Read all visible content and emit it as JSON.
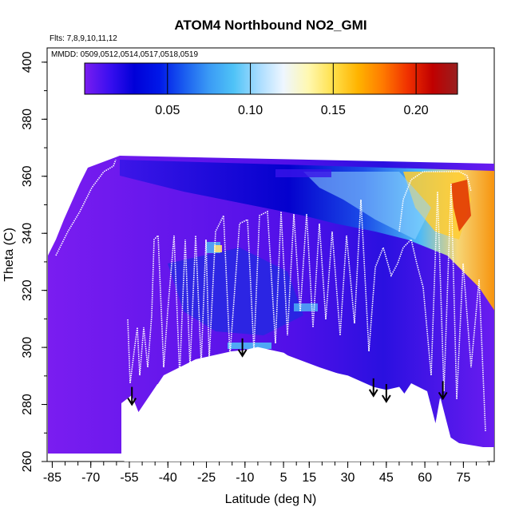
{
  "chart_data": {
    "type": "heatmap",
    "title": "ATOM4 Northbound NO2_GMI",
    "annotations": {
      "flights": "Flts: 7,8,9,10,11,12",
      "dates": "MMDD: 0509,0512,0514,0517,0518,0519"
    },
    "xlabel": "Latitude (deg N)",
    "ylabel": "Theta (C)",
    "xlim": [
      -87,
      87
    ],
    "ylim": [
      260,
      405
    ],
    "x_ticks": [
      -85,
      -70,
      -55,
      -40,
      -25,
      -10,
      5,
      15,
      30,
      45,
      60,
      75
    ],
    "x_tick_labels": [
      "-85",
      "-70",
      "-55",
      "-40",
      "-25",
      "-10",
      "5",
      "15",
      "30",
      "45",
      "60",
      "75"
    ],
    "y_ticks": [
      260,
      280,
      300,
      320,
      340,
      360,
      380,
      400
    ],
    "y_tick_labels": [
      "260",
      "280",
      "300",
      "320",
      "340",
      "360",
      "380",
      "400"
    ],
    "colorbar": {
      "min": 0.0,
      "max": 0.225,
      "ticks": [
        0.05,
        0.1,
        0.15,
        0.2
      ],
      "tick_labels": [
        "0.05",
        "0.10",
        "0.15",
        "0.20"
      ],
      "colors": [
        "#7a1df0",
        "#3a0ff0",
        "#0000d8",
        "#0018e8",
        "#1a5cf0",
        "#3a9af5",
        "#4fc3f7",
        "#a8dcff",
        "#eef6ff",
        "#fff8b0",
        "#ffe04a",
        "#ffb300",
        "#ff7a00",
        "#f03000",
        "#c00000",
        "#982020"
      ]
    },
    "surface_outline": [
      [
        -57,
        278
      ],
      [
        -55,
        282
      ],
      [
        -53,
        275
      ],
      [
        -44,
        287
      ],
      [
        -40,
        287
      ],
      [
        -30,
        295
      ],
      [
        -25,
        295
      ],
      [
        -15,
        298
      ],
      [
        -5,
        300
      ],
      [
        0,
        299
      ],
      [
        5,
        298
      ],
      [
        10,
        295
      ],
      [
        20,
        292
      ],
      [
        30,
        290
      ],
      [
        40,
        286
      ],
      [
        45,
        285
      ],
      [
        50,
        286
      ],
      [
        55,
        280
      ],
      [
        58,
        283
      ],
      [
        62,
        270
      ],
      [
        64,
        272
      ],
      [
        66,
        282
      ],
      [
        70,
        268
      ],
      [
        75,
        265
      ],
      [
        78,
        262
      ],
      [
        80,
        262
      ],
      [
        82,
        263
      ],
      [
        84,
        264
      ]
    ],
    "surface_arrows": [
      {
        "lat": -54,
        "theta": 280
      },
      {
        "lat": -11,
        "theta": 297
      },
      {
        "lat": 40,
        "theta": 283
      },
      {
        "lat": 45,
        "theta": 281
      },
      {
        "lat": 67,
        "theta": 282
      }
    ]
  }
}
